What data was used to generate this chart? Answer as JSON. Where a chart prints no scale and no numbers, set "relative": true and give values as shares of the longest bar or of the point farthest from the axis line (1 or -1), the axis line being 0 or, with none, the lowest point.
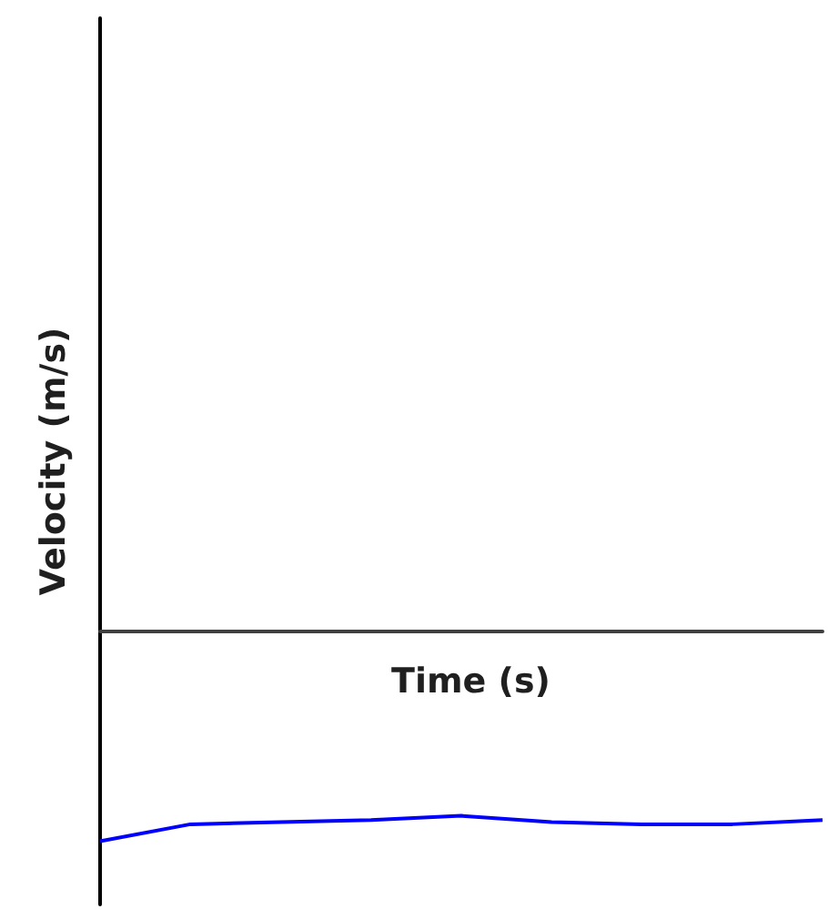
{
  "chart_data": {
    "type": "line",
    "relative": true,
    "xlabel": "Time (s)",
    "ylabel": "Velocity (m/s)",
    "categories": [
      null,
      null,
      null,
      null,
      null,
      null,
      null,
      null,
      null
    ],
    "series": [
      {
        "color": "#0000ff",
        "values": [
          -1,
          -0.92,
          -0.91,
          -0.9,
          -0.88,
          -0.91,
          -0.92,
          -0.92,
          -0.9
        ]
      }
    ],
    "marker": "none",
    "grid": false
  }
}
